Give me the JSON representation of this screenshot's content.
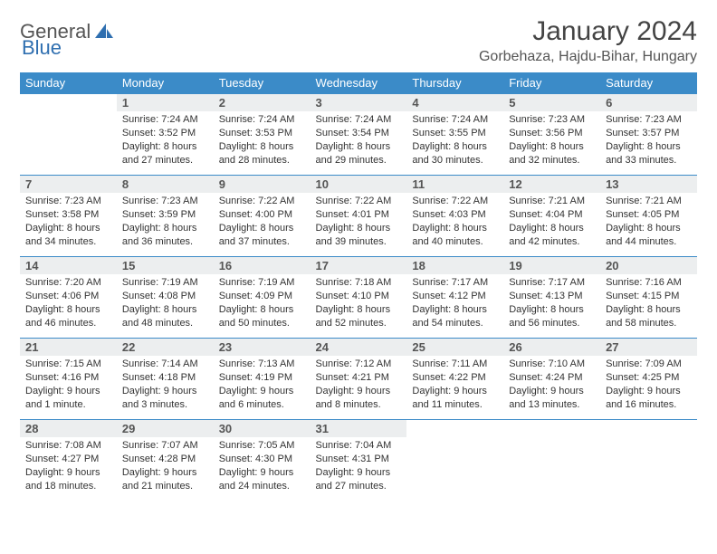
{
  "brand": {
    "part1": "General",
    "part2": "Blue"
  },
  "header": {
    "month_title": "January 2024",
    "location": "Gorbehaza, Hajdu-Bihar, Hungary"
  },
  "colors": {
    "header_bg": "#3b8bc8",
    "header_text": "#ffffff",
    "row_border": "#3b8bc8",
    "daynum_bg": "#eceeef",
    "text": "#333333",
    "brand_gray": "#555555",
    "brand_blue": "#2f6fb0"
  },
  "weekdays": [
    "Sunday",
    "Monday",
    "Tuesday",
    "Wednesday",
    "Thursday",
    "Friday",
    "Saturday"
  ],
  "weeks": [
    [
      {
        "n": "",
        "sr": "",
        "ss": "",
        "dl1": "",
        "dl2": ""
      },
      {
        "n": "1",
        "sr": "Sunrise: 7:24 AM",
        "ss": "Sunset: 3:52 PM",
        "dl1": "Daylight: 8 hours",
        "dl2": "and 27 minutes."
      },
      {
        "n": "2",
        "sr": "Sunrise: 7:24 AM",
        "ss": "Sunset: 3:53 PM",
        "dl1": "Daylight: 8 hours",
        "dl2": "and 28 minutes."
      },
      {
        "n": "3",
        "sr": "Sunrise: 7:24 AM",
        "ss": "Sunset: 3:54 PM",
        "dl1": "Daylight: 8 hours",
        "dl2": "and 29 minutes."
      },
      {
        "n": "4",
        "sr": "Sunrise: 7:24 AM",
        "ss": "Sunset: 3:55 PM",
        "dl1": "Daylight: 8 hours",
        "dl2": "and 30 minutes."
      },
      {
        "n": "5",
        "sr": "Sunrise: 7:23 AM",
        "ss": "Sunset: 3:56 PM",
        "dl1": "Daylight: 8 hours",
        "dl2": "and 32 minutes."
      },
      {
        "n": "6",
        "sr": "Sunrise: 7:23 AM",
        "ss": "Sunset: 3:57 PM",
        "dl1": "Daylight: 8 hours",
        "dl2": "and 33 minutes."
      }
    ],
    [
      {
        "n": "7",
        "sr": "Sunrise: 7:23 AM",
        "ss": "Sunset: 3:58 PM",
        "dl1": "Daylight: 8 hours",
        "dl2": "and 34 minutes."
      },
      {
        "n": "8",
        "sr": "Sunrise: 7:23 AM",
        "ss": "Sunset: 3:59 PM",
        "dl1": "Daylight: 8 hours",
        "dl2": "and 36 minutes."
      },
      {
        "n": "9",
        "sr": "Sunrise: 7:22 AM",
        "ss": "Sunset: 4:00 PM",
        "dl1": "Daylight: 8 hours",
        "dl2": "and 37 minutes."
      },
      {
        "n": "10",
        "sr": "Sunrise: 7:22 AM",
        "ss": "Sunset: 4:01 PM",
        "dl1": "Daylight: 8 hours",
        "dl2": "and 39 minutes."
      },
      {
        "n": "11",
        "sr": "Sunrise: 7:22 AM",
        "ss": "Sunset: 4:03 PM",
        "dl1": "Daylight: 8 hours",
        "dl2": "and 40 minutes."
      },
      {
        "n": "12",
        "sr": "Sunrise: 7:21 AM",
        "ss": "Sunset: 4:04 PM",
        "dl1": "Daylight: 8 hours",
        "dl2": "and 42 minutes."
      },
      {
        "n": "13",
        "sr": "Sunrise: 7:21 AM",
        "ss": "Sunset: 4:05 PM",
        "dl1": "Daylight: 8 hours",
        "dl2": "and 44 minutes."
      }
    ],
    [
      {
        "n": "14",
        "sr": "Sunrise: 7:20 AM",
        "ss": "Sunset: 4:06 PM",
        "dl1": "Daylight: 8 hours",
        "dl2": "and 46 minutes."
      },
      {
        "n": "15",
        "sr": "Sunrise: 7:19 AM",
        "ss": "Sunset: 4:08 PM",
        "dl1": "Daylight: 8 hours",
        "dl2": "and 48 minutes."
      },
      {
        "n": "16",
        "sr": "Sunrise: 7:19 AM",
        "ss": "Sunset: 4:09 PM",
        "dl1": "Daylight: 8 hours",
        "dl2": "and 50 minutes."
      },
      {
        "n": "17",
        "sr": "Sunrise: 7:18 AM",
        "ss": "Sunset: 4:10 PM",
        "dl1": "Daylight: 8 hours",
        "dl2": "and 52 minutes."
      },
      {
        "n": "18",
        "sr": "Sunrise: 7:17 AM",
        "ss": "Sunset: 4:12 PM",
        "dl1": "Daylight: 8 hours",
        "dl2": "and 54 minutes."
      },
      {
        "n": "19",
        "sr": "Sunrise: 7:17 AM",
        "ss": "Sunset: 4:13 PM",
        "dl1": "Daylight: 8 hours",
        "dl2": "and 56 minutes."
      },
      {
        "n": "20",
        "sr": "Sunrise: 7:16 AM",
        "ss": "Sunset: 4:15 PM",
        "dl1": "Daylight: 8 hours",
        "dl2": "and 58 minutes."
      }
    ],
    [
      {
        "n": "21",
        "sr": "Sunrise: 7:15 AM",
        "ss": "Sunset: 4:16 PM",
        "dl1": "Daylight: 9 hours",
        "dl2": "and 1 minute."
      },
      {
        "n": "22",
        "sr": "Sunrise: 7:14 AM",
        "ss": "Sunset: 4:18 PM",
        "dl1": "Daylight: 9 hours",
        "dl2": "and 3 minutes."
      },
      {
        "n": "23",
        "sr": "Sunrise: 7:13 AM",
        "ss": "Sunset: 4:19 PM",
        "dl1": "Daylight: 9 hours",
        "dl2": "and 6 minutes."
      },
      {
        "n": "24",
        "sr": "Sunrise: 7:12 AM",
        "ss": "Sunset: 4:21 PM",
        "dl1": "Daylight: 9 hours",
        "dl2": "and 8 minutes."
      },
      {
        "n": "25",
        "sr": "Sunrise: 7:11 AM",
        "ss": "Sunset: 4:22 PM",
        "dl1": "Daylight: 9 hours",
        "dl2": "and 11 minutes."
      },
      {
        "n": "26",
        "sr": "Sunrise: 7:10 AM",
        "ss": "Sunset: 4:24 PM",
        "dl1": "Daylight: 9 hours",
        "dl2": "and 13 minutes."
      },
      {
        "n": "27",
        "sr": "Sunrise: 7:09 AM",
        "ss": "Sunset: 4:25 PM",
        "dl1": "Daylight: 9 hours",
        "dl2": "and 16 minutes."
      }
    ],
    [
      {
        "n": "28",
        "sr": "Sunrise: 7:08 AM",
        "ss": "Sunset: 4:27 PM",
        "dl1": "Daylight: 9 hours",
        "dl2": "and 18 minutes."
      },
      {
        "n": "29",
        "sr": "Sunrise: 7:07 AM",
        "ss": "Sunset: 4:28 PM",
        "dl1": "Daylight: 9 hours",
        "dl2": "and 21 minutes."
      },
      {
        "n": "30",
        "sr": "Sunrise: 7:05 AM",
        "ss": "Sunset: 4:30 PM",
        "dl1": "Daylight: 9 hours",
        "dl2": "and 24 minutes."
      },
      {
        "n": "31",
        "sr": "Sunrise: 7:04 AM",
        "ss": "Sunset: 4:31 PM",
        "dl1": "Daylight: 9 hours",
        "dl2": "and 27 minutes."
      },
      {
        "n": "",
        "sr": "",
        "ss": "",
        "dl1": "",
        "dl2": ""
      },
      {
        "n": "",
        "sr": "",
        "ss": "",
        "dl1": "",
        "dl2": ""
      },
      {
        "n": "",
        "sr": "",
        "ss": "",
        "dl1": "",
        "dl2": ""
      }
    ]
  ]
}
